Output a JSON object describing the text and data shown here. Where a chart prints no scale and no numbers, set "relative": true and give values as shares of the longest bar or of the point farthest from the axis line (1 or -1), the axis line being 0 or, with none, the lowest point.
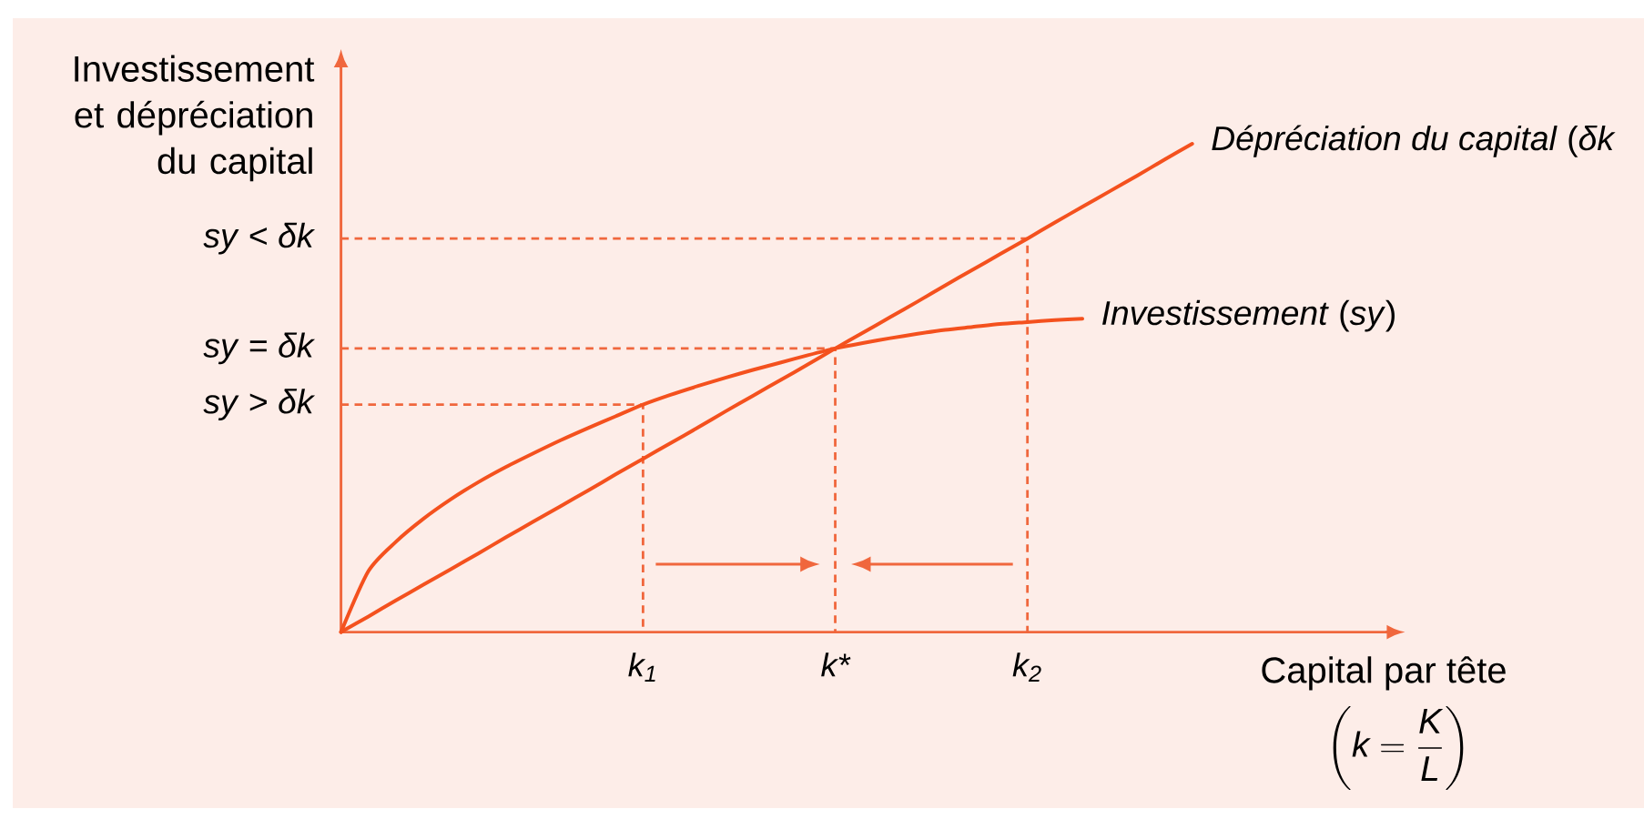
{
  "chart_data": {
    "type": "line",
    "relative": true,
    "xlabel": "Capital par tête",
    "ylabel": "Investissement et dépréciation du capital",
    "categories": [
      null,
      null,
      null,
      null,
      null,
      null,
      null,
      null,
      null,
      null,
      null,
      "k$_{1}$",
      null,
      null,
      null,
      null,
      null,
      null,
      "k*",
      null,
      null,
      null,
      null,
      null,
      null,
      "k$_{2}$",
      null,
      null,
      null,
      null,
      null,
      null
    ],
    "series": [
      {
        "name": "*Dépréciation du capital* (*δk*",
        "color": "#f4511e",
        "values": [
          0,
          0.032,
          0.065,
          0.097,
          0.129,
          0.161,
          0.194,
          0.226,
          0.258,
          0.29,
          0.323,
          0.355,
          0.387,
          0.419,
          0.452,
          0.484,
          0.516,
          0.548,
          0.581,
          0.613,
          0.645,
          0.677,
          0.71,
          0.742,
          0.774,
          0.806,
          0.839,
          0.871,
          0.903,
          0.935,
          0.968,
          1
        ]
      },
      {
        "name": "*Investissement* (*sy*)",
        "color": "#f4511e",
        "values": [
          0,
          0.125,
          0.185,
          0.232,
          0.272,
          0.307,
          0.338,
          0.366,
          0.393,
          0.418,
          0.442,
          0.466,
          0.486,
          0.504,
          0.521,
          0.537,
          0.552,
          0.567,
          0.581,
          0.592,
          0.602,
          0.611,
          0.619,
          0.625,
          0.631,
          0.635,
          0.639,
          0.642,
          null,
          null,
          null,
          null
        ]
      }
    ],
    "ref_lines": [
      {
        "axis": "y",
        "value": 0.806,
        "label": "*sy* < *δk*",
        "line_style": "dashed",
        "color": "#f0673d"
      },
      {
        "axis": "y",
        "value": 0.581,
        "label": "*sy* = *δk*",
        "line_style": "dashed",
        "color": "#f0673d"
      },
      {
        "axis": "y",
        "value": 0.466,
        "label": "*sy* > *δk*",
        "line_style": "dashed",
        "color": "#f0673d"
      }
    ],
    "annotations": [
      "\\left(\\mathit{k}=\\frac{\\mathit{K}}{\\mathit{L}}\\right)"
    ]
  }
}
